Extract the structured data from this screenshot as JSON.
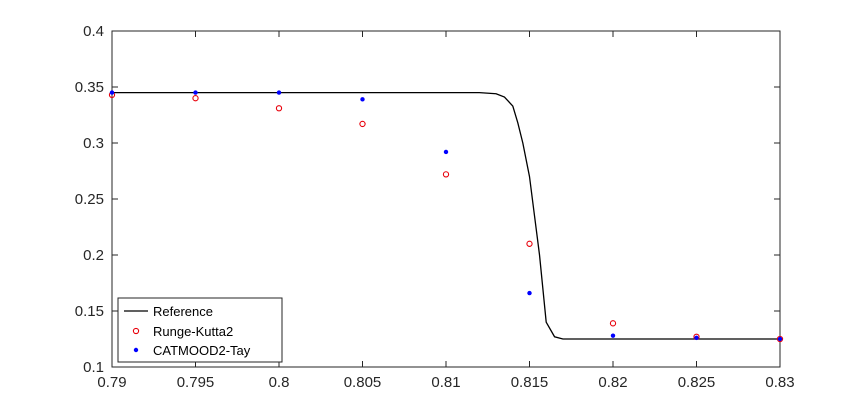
{
  "chart_data": {
    "type": "line",
    "title": "",
    "xlabel": "",
    "ylabel": "",
    "xlim": [
      0.79,
      0.83
    ],
    "ylim": [
      0.1,
      0.4
    ],
    "x_ticks": [
      0.79,
      0.795,
      0.8,
      0.805,
      0.81,
      0.815,
      0.82,
      0.825,
      0.83
    ],
    "x_tick_labels": [
      "0.79",
      "0.795",
      "0.8",
      "0.805",
      "0.81",
      "0.815",
      "0.82",
      "0.825",
      "0.83"
    ],
    "y_ticks": [
      0.1,
      0.15,
      0.2,
      0.25,
      0.3,
      0.35,
      0.4
    ],
    "y_tick_labels": [
      "0.1",
      "0.15",
      "0.2",
      "0.25",
      "0.3",
      "0.35",
      "0.4"
    ],
    "grid": false,
    "legend_position": "bottom-left",
    "series": [
      {
        "name": "Reference",
        "style": "line",
        "color": "#000000",
        "x": [
          0.79,
          0.795,
          0.8,
          0.805,
          0.81,
          0.812,
          0.813,
          0.8135,
          0.814,
          0.8143,
          0.8146,
          0.815,
          0.8153,
          0.8156,
          0.816,
          0.8165,
          0.817,
          0.818,
          0.82,
          0.825,
          0.83
        ],
        "y": [
          0.345,
          0.345,
          0.345,
          0.345,
          0.345,
          0.345,
          0.344,
          0.341,
          0.333,
          0.318,
          0.3,
          0.27,
          0.235,
          0.2,
          0.14,
          0.127,
          0.125,
          0.125,
          0.125,
          0.125,
          0.125
        ]
      },
      {
        "name": "Runge-Kutta2",
        "style": "markers",
        "marker": "open-circle",
        "color": "#e8000b",
        "x": [
          0.79,
          0.795,
          0.8,
          0.805,
          0.81,
          0.815,
          0.82,
          0.825,
          0.83
        ],
        "y": [
          0.343,
          0.34,
          0.331,
          0.317,
          0.272,
          0.21,
          0.139,
          0.127,
          0.125
        ]
      },
      {
        "name": "CATMOOD2-Tay",
        "style": "markers",
        "marker": "dot",
        "color": "#0000ff",
        "x": [
          0.79,
          0.795,
          0.8,
          0.805,
          0.81,
          0.815,
          0.82,
          0.825,
          0.83
        ],
        "y": [
          0.345,
          0.345,
          0.345,
          0.339,
          0.292,
          0.166,
          0.128,
          0.126,
          0.125
        ]
      }
    ]
  }
}
